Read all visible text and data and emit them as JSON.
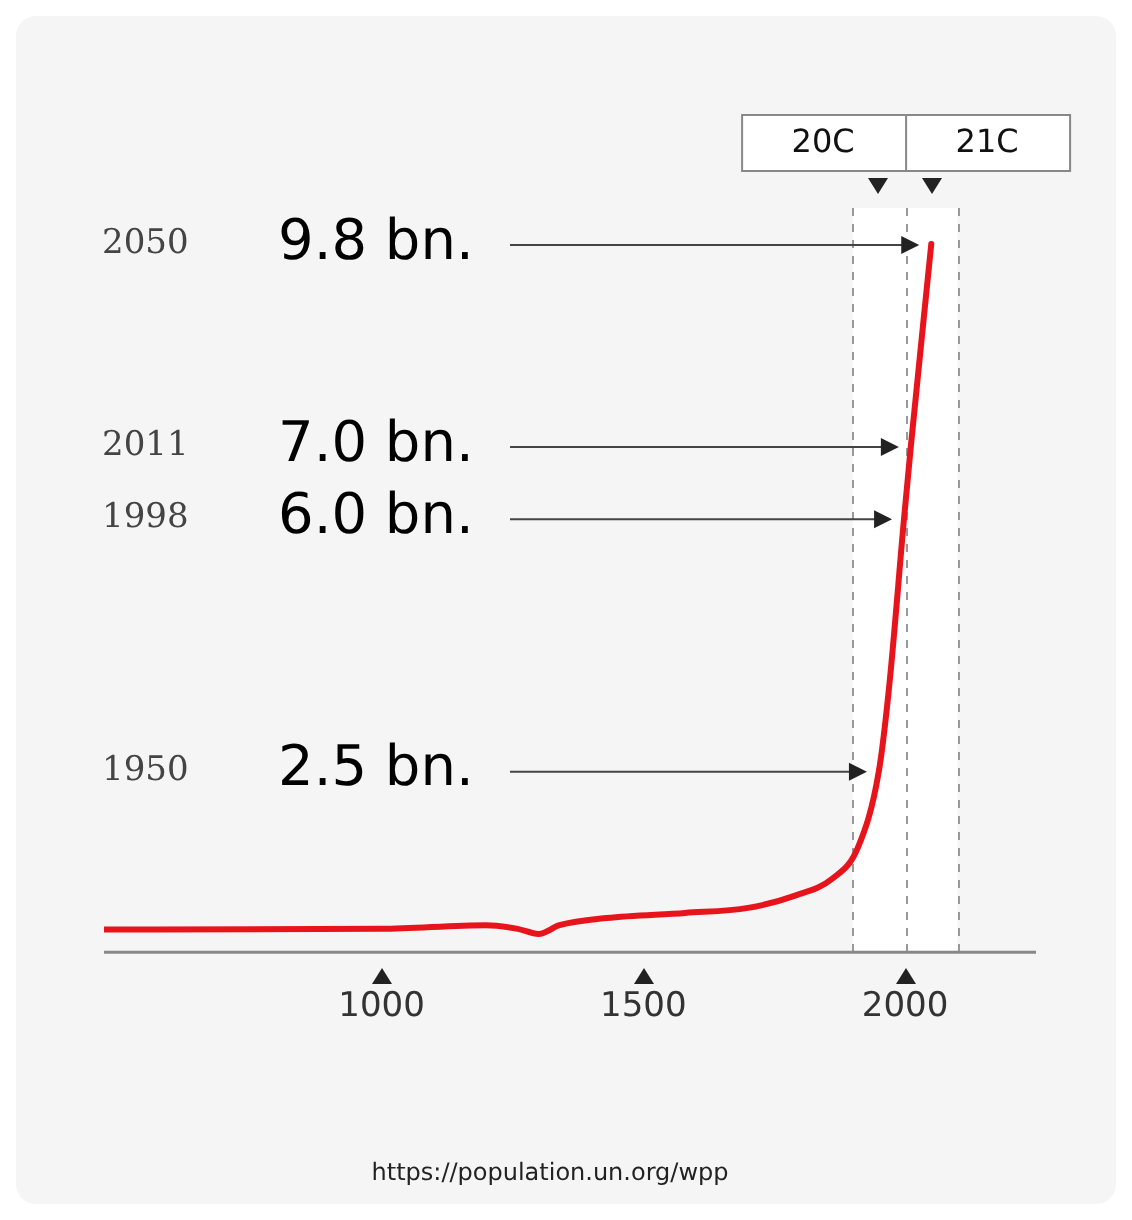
{
  "chart_data": {
    "type": "line",
    "x": [
      470,
      1000,
      1200,
      1260,
      1300,
      1340,
      1430,
      1580,
      1700,
      1790,
      1860,
      1910,
      1950,
      1970,
      1998,
      2011,
      2050
    ],
    "series": [
      {
        "color": "#e8141c",
        "values": [
          0.3,
          0.31,
          0.36,
          0.31,
          0.24,
          0.36,
          0.46,
          0.53,
          0.6,
          0.77,
          1.0,
          1.44,
          2.5,
          3.7,
          6.0,
          7.0,
          9.8
        ]
      }
    ],
    "xlim": [
      470,
      2250
    ],
    "xticks": [
      1000,
      1500,
      2000
    ],
    "ylim": [
      0,
      10.3
    ],
    "yticks": [
      {
        "value": 9.8,
        "label": "9.8 bn."
      },
      {
        "value": 7.0,
        "label": "7.0 bn."
      },
      {
        "value": 6.0,
        "label": "6.0 bn."
      },
      {
        "value": 2.5,
        "label": "2.5 bn."
      }
    ],
    "grid": false,
    "legend": false,
    "marker": "none",
    "line_style": "solid",
    "bands": [
      {
        "axis": "x",
        "from": 1900,
        "to": 2000,
        "label": "20C",
        "color": "#ffffff"
      },
      {
        "axis": "x",
        "from": 2000,
        "to": 2100,
        "label": "21C",
        "color": "#ffffff"
      }
    ],
    "ref_lines": [
      {
        "axis": "x",
        "value": 1900,
        "color": "#999999",
        "line_style": "dashed"
      },
      {
        "axis": "x",
        "value": 2000,
        "color": "#999999",
        "line_style": "dashed"
      },
      {
        "axis": "x",
        "value": 2100,
        "color": "#999999",
        "line_style": "dashed"
      }
    ],
    "annotations": [
      "2050",
      "2011",
      "1998",
      "1950",
      "https://population.un.org/wpp"
    ]
  }
}
